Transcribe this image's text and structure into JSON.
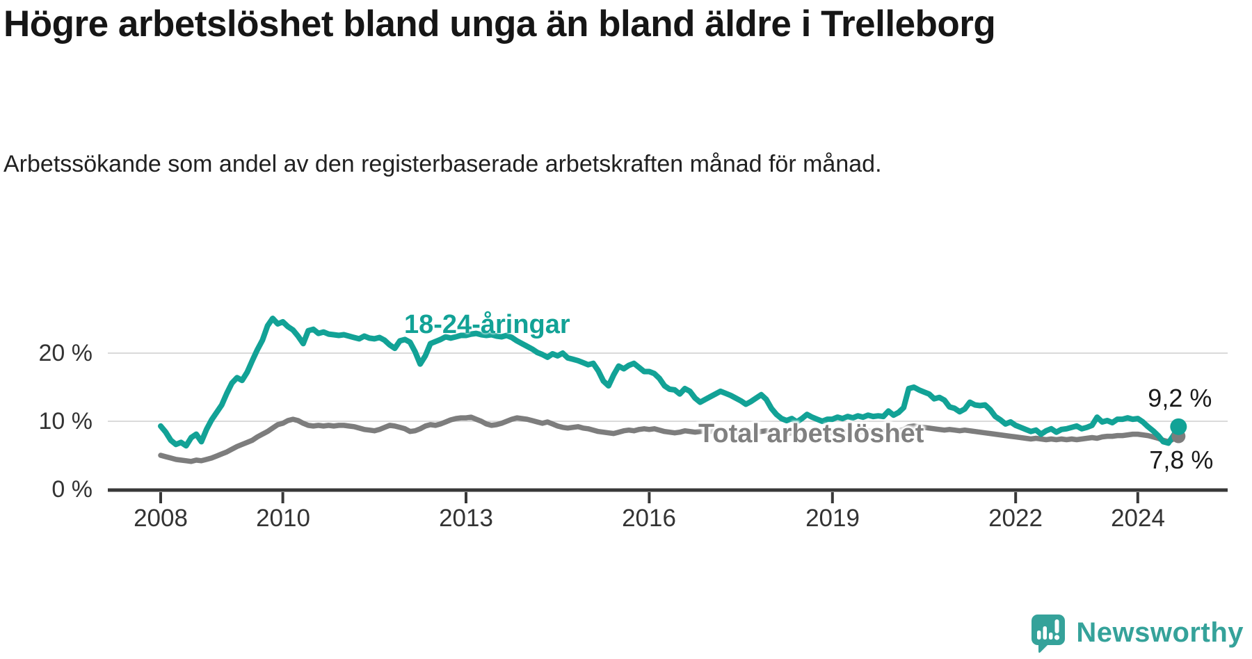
{
  "title": "Högre arbetslöshet bland unga än bland äldre i Trelleborg",
  "subtitle": "Arbetssökande som andel av den registerbaserade arbetskraften månad för månad.",
  "branding": {
    "logo_text": "Newsworthy",
    "logo_icon": "chart-speech-bubble-icon"
  },
  "chart_data": {
    "type": "line",
    "title": "Högre arbetslöshet bland unga än bland äldre i Trelleborg",
    "subtitle": "Arbetssökande som andel av den registerbaserade arbetskraften månad för månad.",
    "unit": "percent",
    "frequency": "monthly",
    "x_start": "2008-01",
    "x_end": "2024-09",
    "ylim": [
      0,
      26
    ],
    "grid": "horizontal",
    "legend_position": "inline-labels",
    "y_tick_labels": [
      "20 %",
      "10 %",
      "0 %"
    ],
    "y_tick_values": [
      20,
      10,
      0
    ],
    "x_tick_labels": [
      "2008",
      "2010",
      "2013",
      "2016",
      "2019",
      "2022",
      "2024"
    ],
    "x_tick_years": [
      2008,
      2010,
      2013,
      2016,
      2019,
      2022,
      2024
    ],
    "colors": {
      "youth": "#12a296",
      "total": "#7d7d7d",
      "grid": "#dadada",
      "axis": "#383838"
    },
    "series": [
      {
        "name": "18-24-åringar",
        "color": "#12a296",
        "end_label": "9,2 %",
        "end_value": 9.2,
        "values": [
          9.3,
          8.4,
          7.2,
          6.6,
          6.9,
          6.4,
          7.6,
          8.1,
          7.0,
          8.8,
          10.2,
          11.3,
          12.4,
          14.1,
          15.6,
          16.4,
          16.0,
          17.2,
          18.9,
          20.5,
          21.9,
          24.0,
          25.1,
          24.3,
          24.6,
          23.9,
          23.4,
          22.5,
          21.4,
          23.3,
          23.5,
          22.9,
          23.1,
          22.8,
          22.7,
          22.6,
          22.7,
          22.5,
          22.3,
          22.1,
          22.5,
          22.2,
          22.1,
          22.3,
          21.9,
          21.2,
          20.7,
          21.8,
          22.0,
          21.6,
          20.2,
          18.4,
          19.6,
          21.4,
          21.7,
          22.0,
          22.4,
          22.2,
          22.4,
          22.6,
          22.6,
          22.8,
          22.9,
          22.7,
          22.6,
          22.7,
          22.5,
          22.4,
          22.6,
          22.3,
          21.8,
          21.4,
          21.0,
          20.6,
          20.1,
          19.8,
          19.4,
          19.9,
          19.6,
          20.0,
          19.3,
          19.1,
          18.9,
          18.6,
          18.3,
          18.5,
          17.4,
          15.9,
          15.2,
          16.8,
          18.1,
          17.7,
          18.2,
          18.5,
          17.9,
          17.3,
          17.3,
          17.0,
          16.3,
          15.2,
          14.7,
          14.6,
          14.0,
          14.8,
          14.4,
          13.4,
          12.8,
          13.2,
          13.6,
          14.0,
          14.4,
          14.1,
          13.8,
          13.4,
          13.0,
          12.5,
          12.9,
          13.4,
          13.9,
          13.2,
          11.9,
          11.0,
          10.4,
          10.1,
          10.4,
          9.9,
          10.4,
          11.0,
          10.6,
          10.3,
          10.0,
          10.3,
          10.3,
          10.6,
          10.4,
          10.7,
          10.5,
          10.8,
          10.6,
          10.9,
          10.7,
          10.8,
          10.7,
          11.5,
          10.9,
          11.3,
          12.0,
          14.8,
          15.0,
          14.6,
          14.3,
          14.0,
          13.3,
          13.5,
          13.1,
          12.1,
          11.9,
          11.4,
          11.8,
          12.8,
          12.4,
          12.3,
          12.4,
          11.7,
          10.7,
          10.2,
          9.6,
          9.9,
          9.4,
          9.1,
          8.8,
          8.5,
          8.7,
          8.1,
          8.6,
          8.9,
          8.4,
          8.8,
          8.9,
          9.1,
          9.3,
          8.9,
          9.1,
          9.4,
          10.6,
          9.9,
          10.1,
          9.8,
          10.3,
          10.3,
          10.5,
          10.3,
          10.4,
          9.9,
          9.2,
          8.6,
          7.9,
          7.0,
          6.8,
          7.9,
          9.2
        ]
      },
      {
        "name": "Total arbetslöshet",
        "color": "#7d7d7d",
        "end_label": "7,8 %",
        "end_value": 7.8,
        "values": [
          5.0,
          4.8,
          4.6,
          4.4,
          4.3,
          4.2,
          4.1,
          4.3,
          4.2,
          4.4,
          4.6,
          4.9,
          5.2,
          5.5,
          5.9,
          6.3,
          6.6,
          6.9,
          7.2,
          7.7,
          8.1,
          8.5,
          9.0,
          9.5,
          9.7,
          10.1,
          10.3,
          10.1,
          9.7,
          9.4,
          9.3,
          9.4,
          9.3,
          9.4,
          9.3,
          9.4,
          9.4,
          9.3,
          9.2,
          9.0,
          8.8,
          8.7,
          8.6,
          8.8,
          9.1,
          9.4,
          9.3,
          9.1,
          8.9,
          8.5,
          8.6,
          8.9,
          9.3,
          9.5,
          9.4,
          9.6,
          9.9,
          10.2,
          10.4,
          10.5,
          10.5,
          10.6,
          10.3,
          10.0,
          9.6,
          9.4,
          9.5,
          9.7,
          10.0,
          10.3,
          10.5,
          10.4,
          10.3,
          10.1,
          9.9,
          9.7,
          9.9,
          9.6,
          9.3,
          9.1,
          9.0,
          9.1,
          9.2,
          9.0,
          8.9,
          8.7,
          8.5,
          8.4,
          8.3,
          8.2,
          8.4,
          8.6,
          8.7,
          8.6,
          8.8,
          8.9,
          8.8,
          8.9,
          8.7,
          8.5,
          8.4,
          8.3,
          8.4,
          8.6,
          8.5,
          8.4,
          8.5,
          8.6,
          8.5,
          8.6,
          8.7,
          8.6,
          8.5,
          8.4,
          8.3,
          8.4,
          8.5,
          8.4,
          8.5,
          8.6,
          8.5,
          8.4,
          8.3,
          8.2,
          8.3,
          8.4,
          8.3,
          8.4,
          8.5,
          8.4,
          8.3,
          8.4,
          8.3,
          8.4,
          8.5,
          8.4,
          8.3,
          8.4,
          8.5,
          8.6,
          8.5,
          8.4,
          8.5,
          8.6,
          8.5,
          8.6,
          8.8,
          9.2,
          9.3,
          9.2,
          9.1,
          9.0,
          8.9,
          8.8,
          8.7,
          8.8,
          8.7,
          8.6,
          8.7,
          8.6,
          8.5,
          8.4,
          8.3,
          8.2,
          8.1,
          8.0,
          7.9,
          7.8,
          7.7,
          7.6,
          7.5,
          7.4,
          7.5,
          7.4,
          7.3,
          7.4,
          7.3,
          7.4,
          7.3,
          7.4,
          7.3,
          7.4,
          7.5,
          7.6,
          7.5,
          7.7,
          7.8,
          7.8,
          7.9,
          7.9,
          8.0,
          8.1,
          8.1,
          8.0,
          7.9,
          7.7,
          7.5,
          7.2,
          7.0,
          7.4,
          7.8
        ]
      }
    ]
  }
}
